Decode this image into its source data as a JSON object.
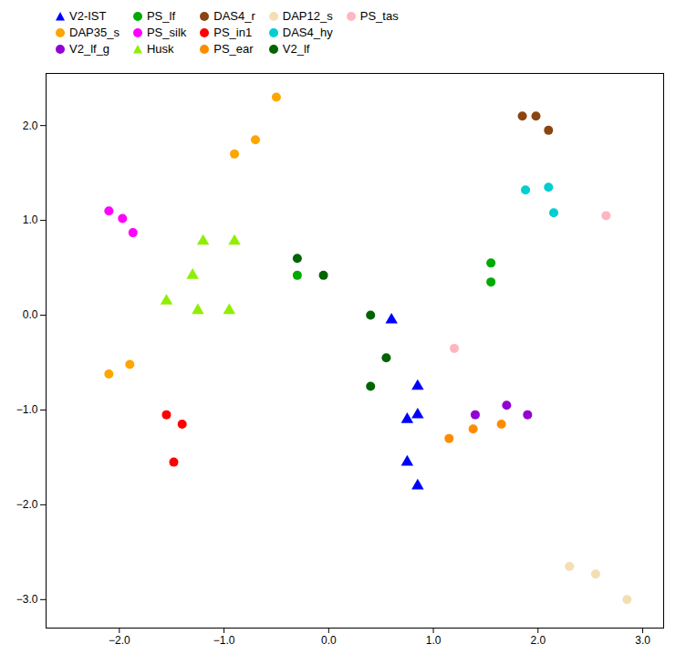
{
  "chart_data": {
    "type": "scatter",
    "series": [
      {
        "name": "V2-IST",
        "color": "#0000FF",
        "marker": "triangle",
        "values": [
          [
            0.6,
            -0.05
          ],
          [
            0.85,
            -0.75
          ],
          [
            0.85,
            -1.05
          ],
          [
            0.75,
            -1.1
          ],
          [
            0.75,
            -1.55
          ],
          [
            0.85,
            -1.8
          ]
        ]
      },
      {
        "name": "DAP35_s",
        "color": "#FFA500",
        "marker": "circle",
        "values": [
          [
            -2.1,
            -0.62
          ],
          [
            -1.9,
            -0.52
          ],
          [
            -0.9,
            1.7
          ],
          [
            -0.7,
            1.85
          ],
          [
            -0.5,
            2.3
          ]
        ]
      },
      {
        "name": "V2_lf_g",
        "color": "#9400D3",
        "marker": "circle",
        "values": [
          [
            1.7,
            -0.95
          ],
          [
            1.4,
            -1.05
          ],
          [
            1.9,
            -1.05
          ]
        ]
      },
      {
        "name": "PS_lf",
        "color": "#00AA00",
        "marker": "circle",
        "values": [
          [
            -0.3,
            0.42
          ],
          [
            1.55,
            0.35
          ],
          [
            1.55,
            0.55
          ]
        ]
      },
      {
        "name": "PS_silk",
        "color": "#FF00FF",
        "marker": "circle",
        "values": [
          [
            -2.1,
            1.1
          ],
          [
            -1.97,
            1.02
          ],
          [
            -1.87,
            0.87
          ]
        ]
      },
      {
        "name": "Husk",
        "color": "#90EE00",
        "marker": "triangle",
        "values": [
          [
            -1.55,
            0.15
          ],
          [
            -1.3,
            0.42
          ],
          [
            -1.2,
            0.78
          ],
          [
            -0.9,
            0.78
          ],
          [
            -1.25,
            0.05
          ],
          [
            -0.95,
            0.05
          ]
        ]
      },
      {
        "name": "DAS4_r",
        "color": "#8B4513",
        "marker": "circle",
        "values": [
          [
            1.85,
            2.1
          ],
          [
            1.98,
            2.1
          ],
          [
            2.1,
            1.95
          ]
        ]
      },
      {
        "name": "PS_in1",
        "color": "#FF0000",
        "marker": "circle",
        "values": [
          [
            -1.55,
            -1.05
          ],
          [
            -1.4,
            -1.15
          ],
          [
            -1.48,
            -1.55
          ]
        ]
      },
      {
        "name": "PS_ear",
        "color": "#FF8C00",
        "marker": "circle",
        "values": [
          [
            1.15,
            -1.3
          ],
          [
            1.38,
            -1.2
          ],
          [
            1.65,
            -1.15
          ]
        ]
      },
      {
        "name": "DAP12_s",
        "color": "#F5DEB3",
        "marker": "circle",
        "values": [
          [
            2.3,
            -2.65
          ],
          [
            2.55,
            -2.73
          ],
          [
            2.85,
            -3.0
          ]
        ]
      },
      {
        "name": "DAS4_hy",
        "color": "#00CED1",
        "marker": "circle",
        "values": [
          [
            1.88,
            1.32
          ],
          [
            2.1,
            1.35
          ],
          [
            2.15,
            1.08
          ]
        ]
      },
      {
        "name": "V2_lf",
        "color": "#006400",
        "marker": "circle",
        "values": [
          [
            -0.3,
            0.6
          ],
          [
            -0.05,
            0.42
          ],
          [
            0.4,
            0.0
          ],
          [
            0.55,
            -0.45
          ],
          [
            0.4,
            -0.75
          ]
        ]
      },
      {
        "name": "PS_tas",
        "color": "#FFB6C1",
        "marker": "circle",
        "values": [
          [
            2.65,
            1.05
          ],
          [
            1.2,
            -0.35
          ]
        ]
      }
    ],
    "xlim": [
      -2.7,
      3.2
    ],
    "ylim": [
      -3.3,
      2.55
    ],
    "xticks": [
      -2,
      -1,
      0,
      1,
      2,
      3
    ],
    "yticks": [
      -3,
      -2,
      -1,
      0,
      1,
      2
    ],
    "grid": false,
    "legend": "top"
  }
}
